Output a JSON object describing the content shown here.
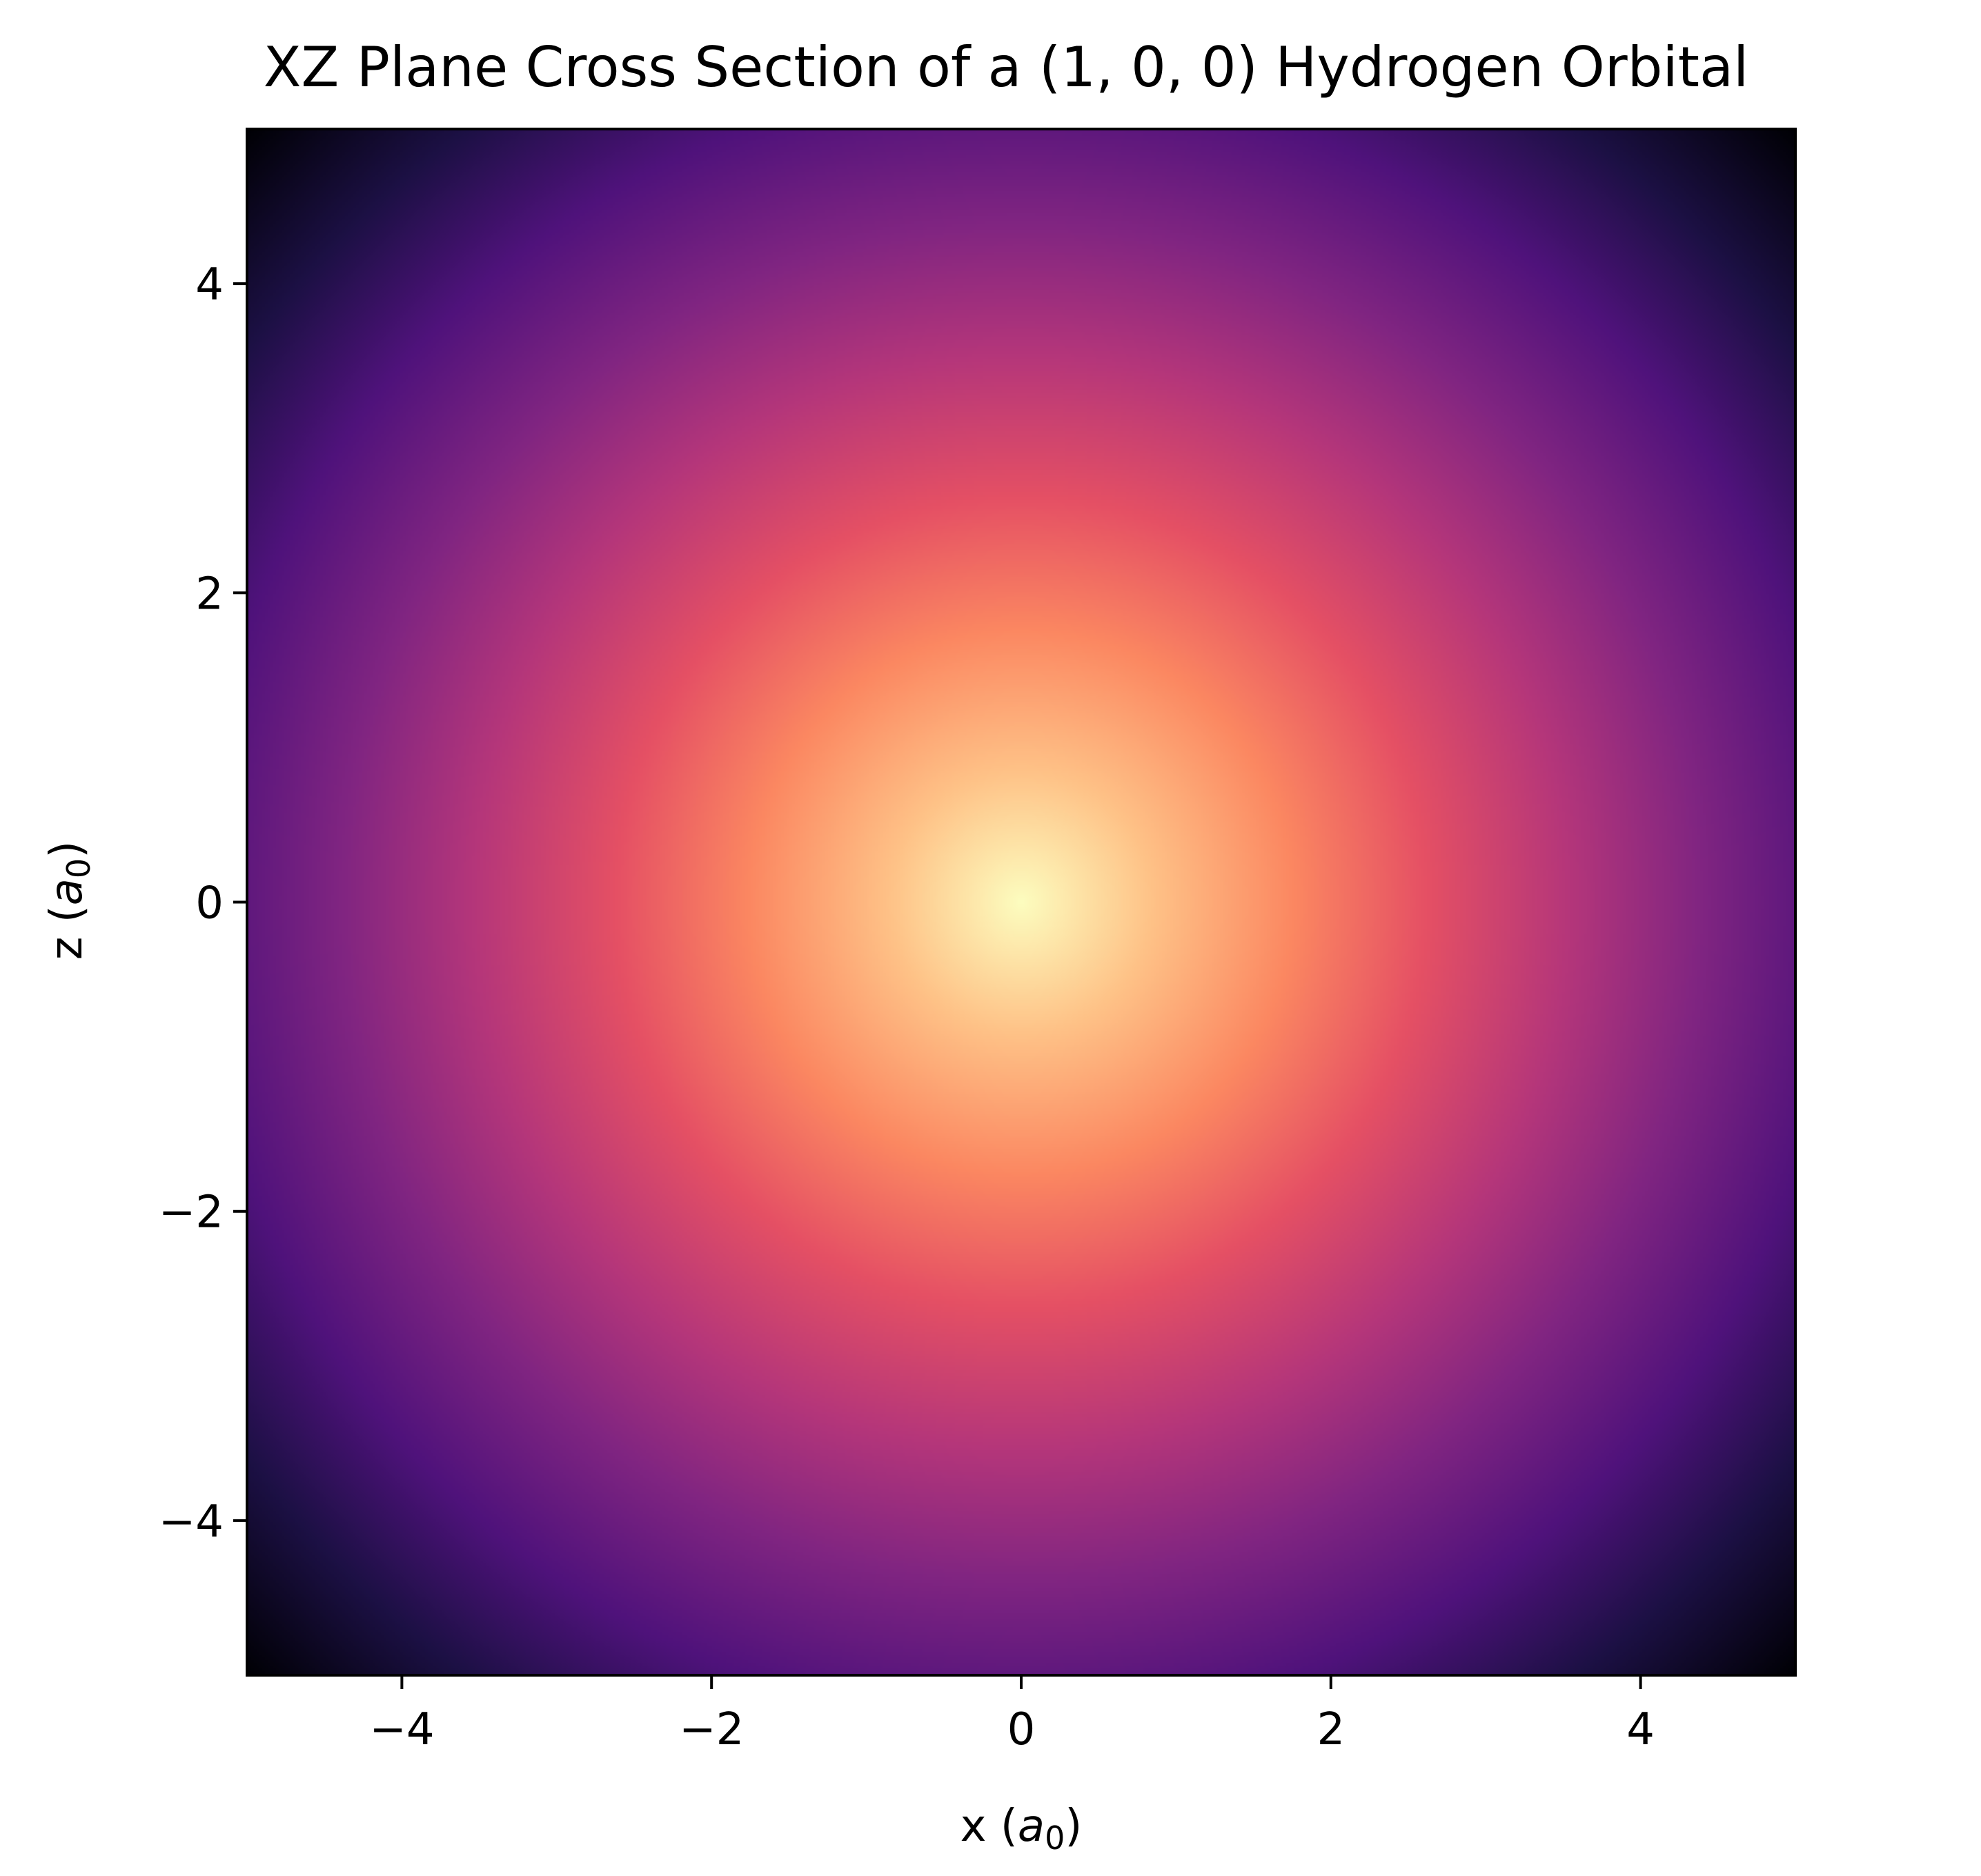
{
  "chart_data": {
    "type": "heatmap",
    "title": "XZ Plane Cross Section of a (1, 0, 0) Hydrogen Orbital",
    "xlabel": "x (a₀)",
    "ylabel": "z (a₀)",
    "xlabel_parts": {
      "prefix": "x (",
      "var": "a",
      "sub": "0",
      "suffix": ")"
    },
    "ylabel_parts": {
      "prefix": "z (",
      "var": "a",
      "sub": "0",
      "suffix": ")"
    },
    "xlim": [
      -5,
      5
    ],
    "ylim": [
      -5,
      5
    ],
    "x_ticks": [
      -4,
      -2,
      0,
      2,
      4
    ],
    "y_ticks": [
      -4,
      -2,
      0,
      2,
      4
    ],
    "x_tick_labels": [
      "−4",
      "−2",
      "0",
      "2",
      "4"
    ],
    "y_tick_labels": [
      "−4",
      "−2",
      "0",
      "2",
      "4"
    ],
    "colormap": "magma",
    "center": [
      0,
      0
    ],
    "quantity": "hydrogen (1, 0, 0) orbital density in the xz plane, peaking at the origin and decreasing radially",
    "grid": false,
    "colorbar": false
  }
}
